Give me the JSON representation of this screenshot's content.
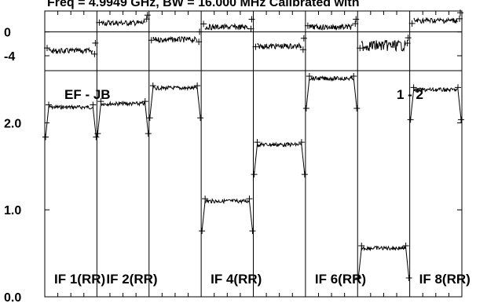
{
  "header_text": "Freq = 4.9949 GHz, BW = 16.000 MHz Calibrated with",
  "baseline_label": "EF - JB",
  "stokes_label": "1 - 2",
  "chart_data": {
    "type": "scatter",
    "panels": [
      {
        "quantity": "phase",
        "ylim": [
          -6.5,
          3.5
        ],
        "yticks": [
          {
            "value": 0,
            "label": "0"
          },
          {
            "value": -4,
            "label": "-4"
          }
        ],
        "zero_line": true
      },
      {
        "quantity": "amplitude",
        "ylim": [
          0,
          2.6
        ],
        "yticks": [
          {
            "value": 0.0,
            "label": "0.0"
          },
          {
            "value": 1.0,
            "label": "1.0"
          },
          {
            "value": 2.0,
            "label": "2.0"
          }
        ]
      }
    ],
    "series": [
      {
        "if": 1,
        "label": "IF 1(RR)",
        "amplitude": 2.18,
        "phase": -3.2
      },
      {
        "if": 2,
        "label": "IF 2(RR)",
        "amplitude": 2.22,
        "phase": 1.5
      },
      {
        "if": 3,
        "label": "",
        "amplitude": 2.4,
        "phase": -1.3
      },
      {
        "if": 4,
        "label": "IF 4(RR)",
        "amplitude": 1.1,
        "phase": 0.8
      },
      {
        "if": 5,
        "label": "",
        "amplitude": 1.75,
        "phase": -2.4
      },
      {
        "if": 6,
        "label": "IF 6(RR)",
        "amplitude": 2.51,
        "phase": 0.8
      },
      {
        "if": 7,
        "label": "",
        "amplitude": 0.56,
        "phase": -2.3
      },
      {
        "if": 8,
        "label": "IF 8(RR)",
        "amplitude": 2.38,
        "phase": 1.9
      }
    ]
  }
}
